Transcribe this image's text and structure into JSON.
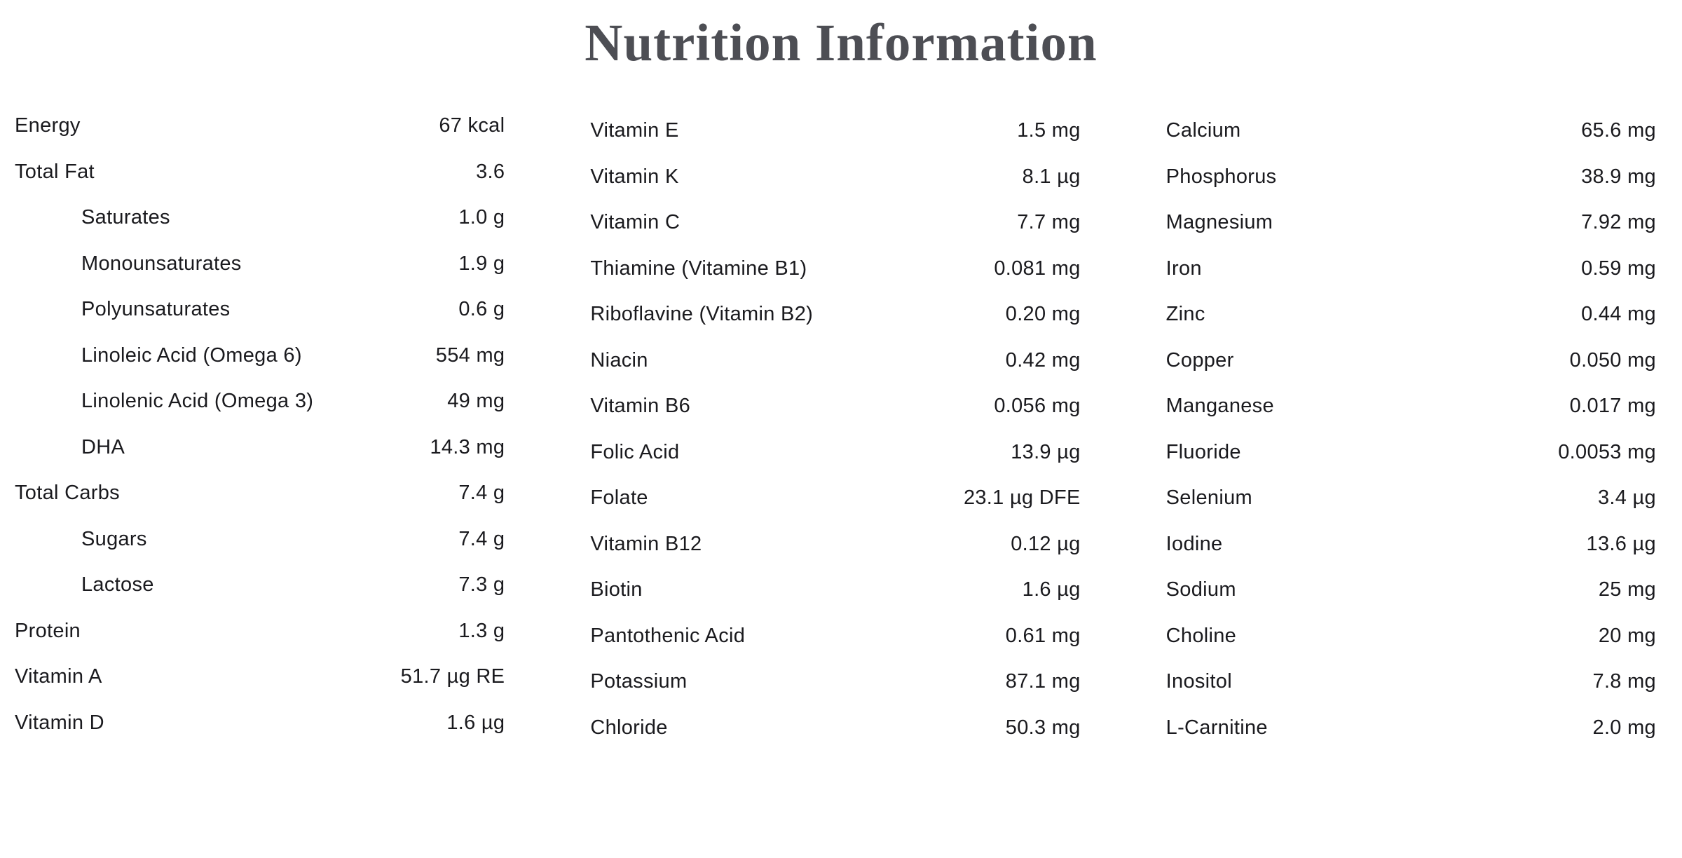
{
  "header": {
    "title": "Nutrition Information",
    "title_color": "#4d4e54"
  },
  "table": {
    "text_color": "#1a1a1e",
    "columns": [
      {
        "rows": [
          {
            "label": "Energy",
            "value": "67 kcal",
            "indent": false
          },
          {
            "label": "Total Fat",
            "value": "3.6",
            "indent": false
          },
          {
            "label": "Saturates",
            "value": "1.0 g",
            "indent": true
          },
          {
            "label": "Monounsaturates",
            "value": "1.9 g",
            "indent": true
          },
          {
            "label": "Polyunsaturates",
            "value": "0.6 g",
            "indent": true
          },
          {
            "label": "Linoleic Acid (Omega 6)",
            "value": "554 mg",
            "indent": true
          },
          {
            "label": "Linolenic Acid (Omega 3)",
            "value": "49 mg",
            "indent": true
          },
          {
            "label": "DHA",
            "value": "14.3 mg",
            "indent": true
          },
          {
            "label": "Total Carbs",
            "value": "7.4 g",
            "indent": false
          },
          {
            "label": "Sugars",
            "value": "7.4 g",
            "indent": true
          },
          {
            "label": "Lactose",
            "value": "7.3 g",
            "indent": true
          },
          {
            "label": "Protein",
            "value": "1.3 g",
            "indent": false
          },
          {
            "label": "Vitamin A",
            "value": "51.7 µg RE",
            "indent": false
          },
          {
            "label": "Vitamin D",
            "value": "1.6 µg",
            "indent": false
          }
        ]
      },
      {
        "rows": [
          {
            "label": "Vitamin E",
            "value": "1.5 mg",
            "indent": false
          },
          {
            "label": "Vitamin K",
            "value": "8.1 µg",
            "indent": false
          },
          {
            "label": "Vitamin C",
            "value": "7.7 mg",
            "indent": false
          },
          {
            "label": "Thiamine (Vitamine B1)",
            "value": "0.081 mg",
            "indent": false
          },
          {
            "label": "Riboflavine (Vitamin B2)",
            "value": "0.20 mg",
            "indent": false
          },
          {
            "label": "Niacin",
            "value": "0.42 mg",
            "indent": false
          },
          {
            "label": "Vitamin B6",
            "value": "0.056 mg",
            "indent": false
          },
          {
            "label": "Folic Acid",
            "value": "13.9 µg",
            "indent": false
          },
          {
            "label": "Folate",
            "value": "23.1 µg DFE",
            "indent": false
          },
          {
            "label": "Vitamin B12",
            "value": "0.12 µg",
            "indent": false
          },
          {
            "label": "Biotin",
            "value": "1.6 µg",
            "indent": false
          },
          {
            "label": "Pantothenic Acid",
            "value": "0.61 mg",
            "indent": false
          },
          {
            "label": "Potassium",
            "value": "87.1 mg",
            "indent": false
          },
          {
            "label": "Chloride",
            "value": "50.3 mg",
            "indent": false
          }
        ]
      },
      {
        "rows": [
          {
            "label": "Calcium",
            "value": "65.6 mg",
            "indent": false
          },
          {
            "label": "Phosphorus",
            "value": "38.9 mg",
            "indent": false
          },
          {
            "label": "Magnesium",
            "value": "7.92 mg",
            "indent": false
          },
          {
            "label": "Iron",
            "value": "0.59 mg",
            "indent": false
          },
          {
            "label": "Zinc",
            "value": "0.44 mg",
            "indent": false
          },
          {
            "label": "Copper",
            "value": "0.050 mg",
            "indent": false
          },
          {
            "label": "Manganese",
            "value": "0.017 mg",
            "indent": false
          },
          {
            "label": "Fluoride",
            "value": "0.0053 mg",
            "indent": false
          },
          {
            "label": "Selenium",
            "value": "3.4 µg",
            "indent": false
          },
          {
            "label": "Iodine",
            "value": "13.6 µg",
            "indent": false
          },
          {
            "label": "Sodium",
            "value": "25 mg",
            "indent": false
          },
          {
            "label": "Choline",
            "value": "20 mg",
            "indent": false
          },
          {
            "label": "Inositol",
            "value": "7.8 mg",
            "indent": false
          },
          {
            "label": "L-Carnitine",
            "value": "2.0 mg",
            "indent": false
          }
        ]
      }
    ]
  }
}
